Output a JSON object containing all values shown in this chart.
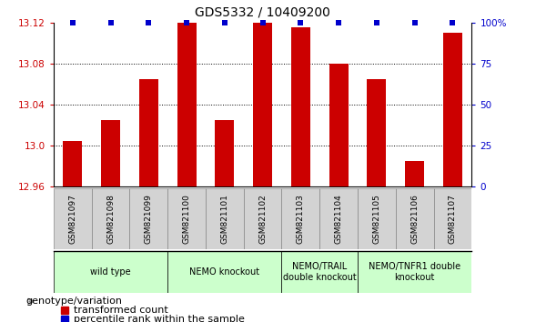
{
  "title": "GDS5332 / 10409200",
  "samples": [
    "GSM821097",
    "GSM821098",
    "GSM821099",
    "GSM821100",
    "GSM821101",
    "GSM821102",
    "GSM821103",
    "GSM821104",
    "GSM821105",
    "GSM821106",
    "GSM821107"
  ],
  "red_values": [
    13.005,
    13.025,
    13.065,
    13.12,
    13.025,
    13.12,
    13.115,
    13.08,
    13.065,
    12.985,
    13.11
  ],
  "blue_percents": [
    100,
    100,
    100,
    100,
    100,
    100,
    100,
    100,
    100,
    100,
    100
  ],
  "ylim_left": [
    12.96,
    13.12
  ],
  "ylim_right": [
    0,
    100
  ],
  "yticks_left": [
    12.96,
    13.0,
    13.04,
    13.08,
    13.12
  ],
  "yticks_right": [
    0,
    25,
    50,
    75,
    100
  ],
  "group_ranges": [
    {
      "start": 0,
      "end": 2,
      "label": "wild type"
    },
    {
      "start": 3,
      "end": 5,
      "label": "NEMO knockout"
    },
    {
      "start": 6,
      "end": 7,
      "label": "NEMO/TRAIL\ndouble knockout"
    },
    {
      "start": 8,
      "end": 10,
      "label": "NEMO/TNFR1 double\nknockout"
    }
  ],
  "bar_color": "#cc0000",
  "blue_color": "#0000cc",
  "bar_width": 0.5,
  "tick_label_color": "#cc0000",
  "right_tick_color": "#0000cc",
  "legend_red_label": "transformed count",
  "legend_blue_label": "percentile rank within the sample",
  "genotype_label": "genotype/variation",
  "group_color": "#ccffcc",
  "xticklabel_bg": "#d3d3d3",
  "title_fontsize": 10,
  "tick_fontsize": 7.5,
  "group_fontsize": 7,
  "legend_fontsize": 8
}
